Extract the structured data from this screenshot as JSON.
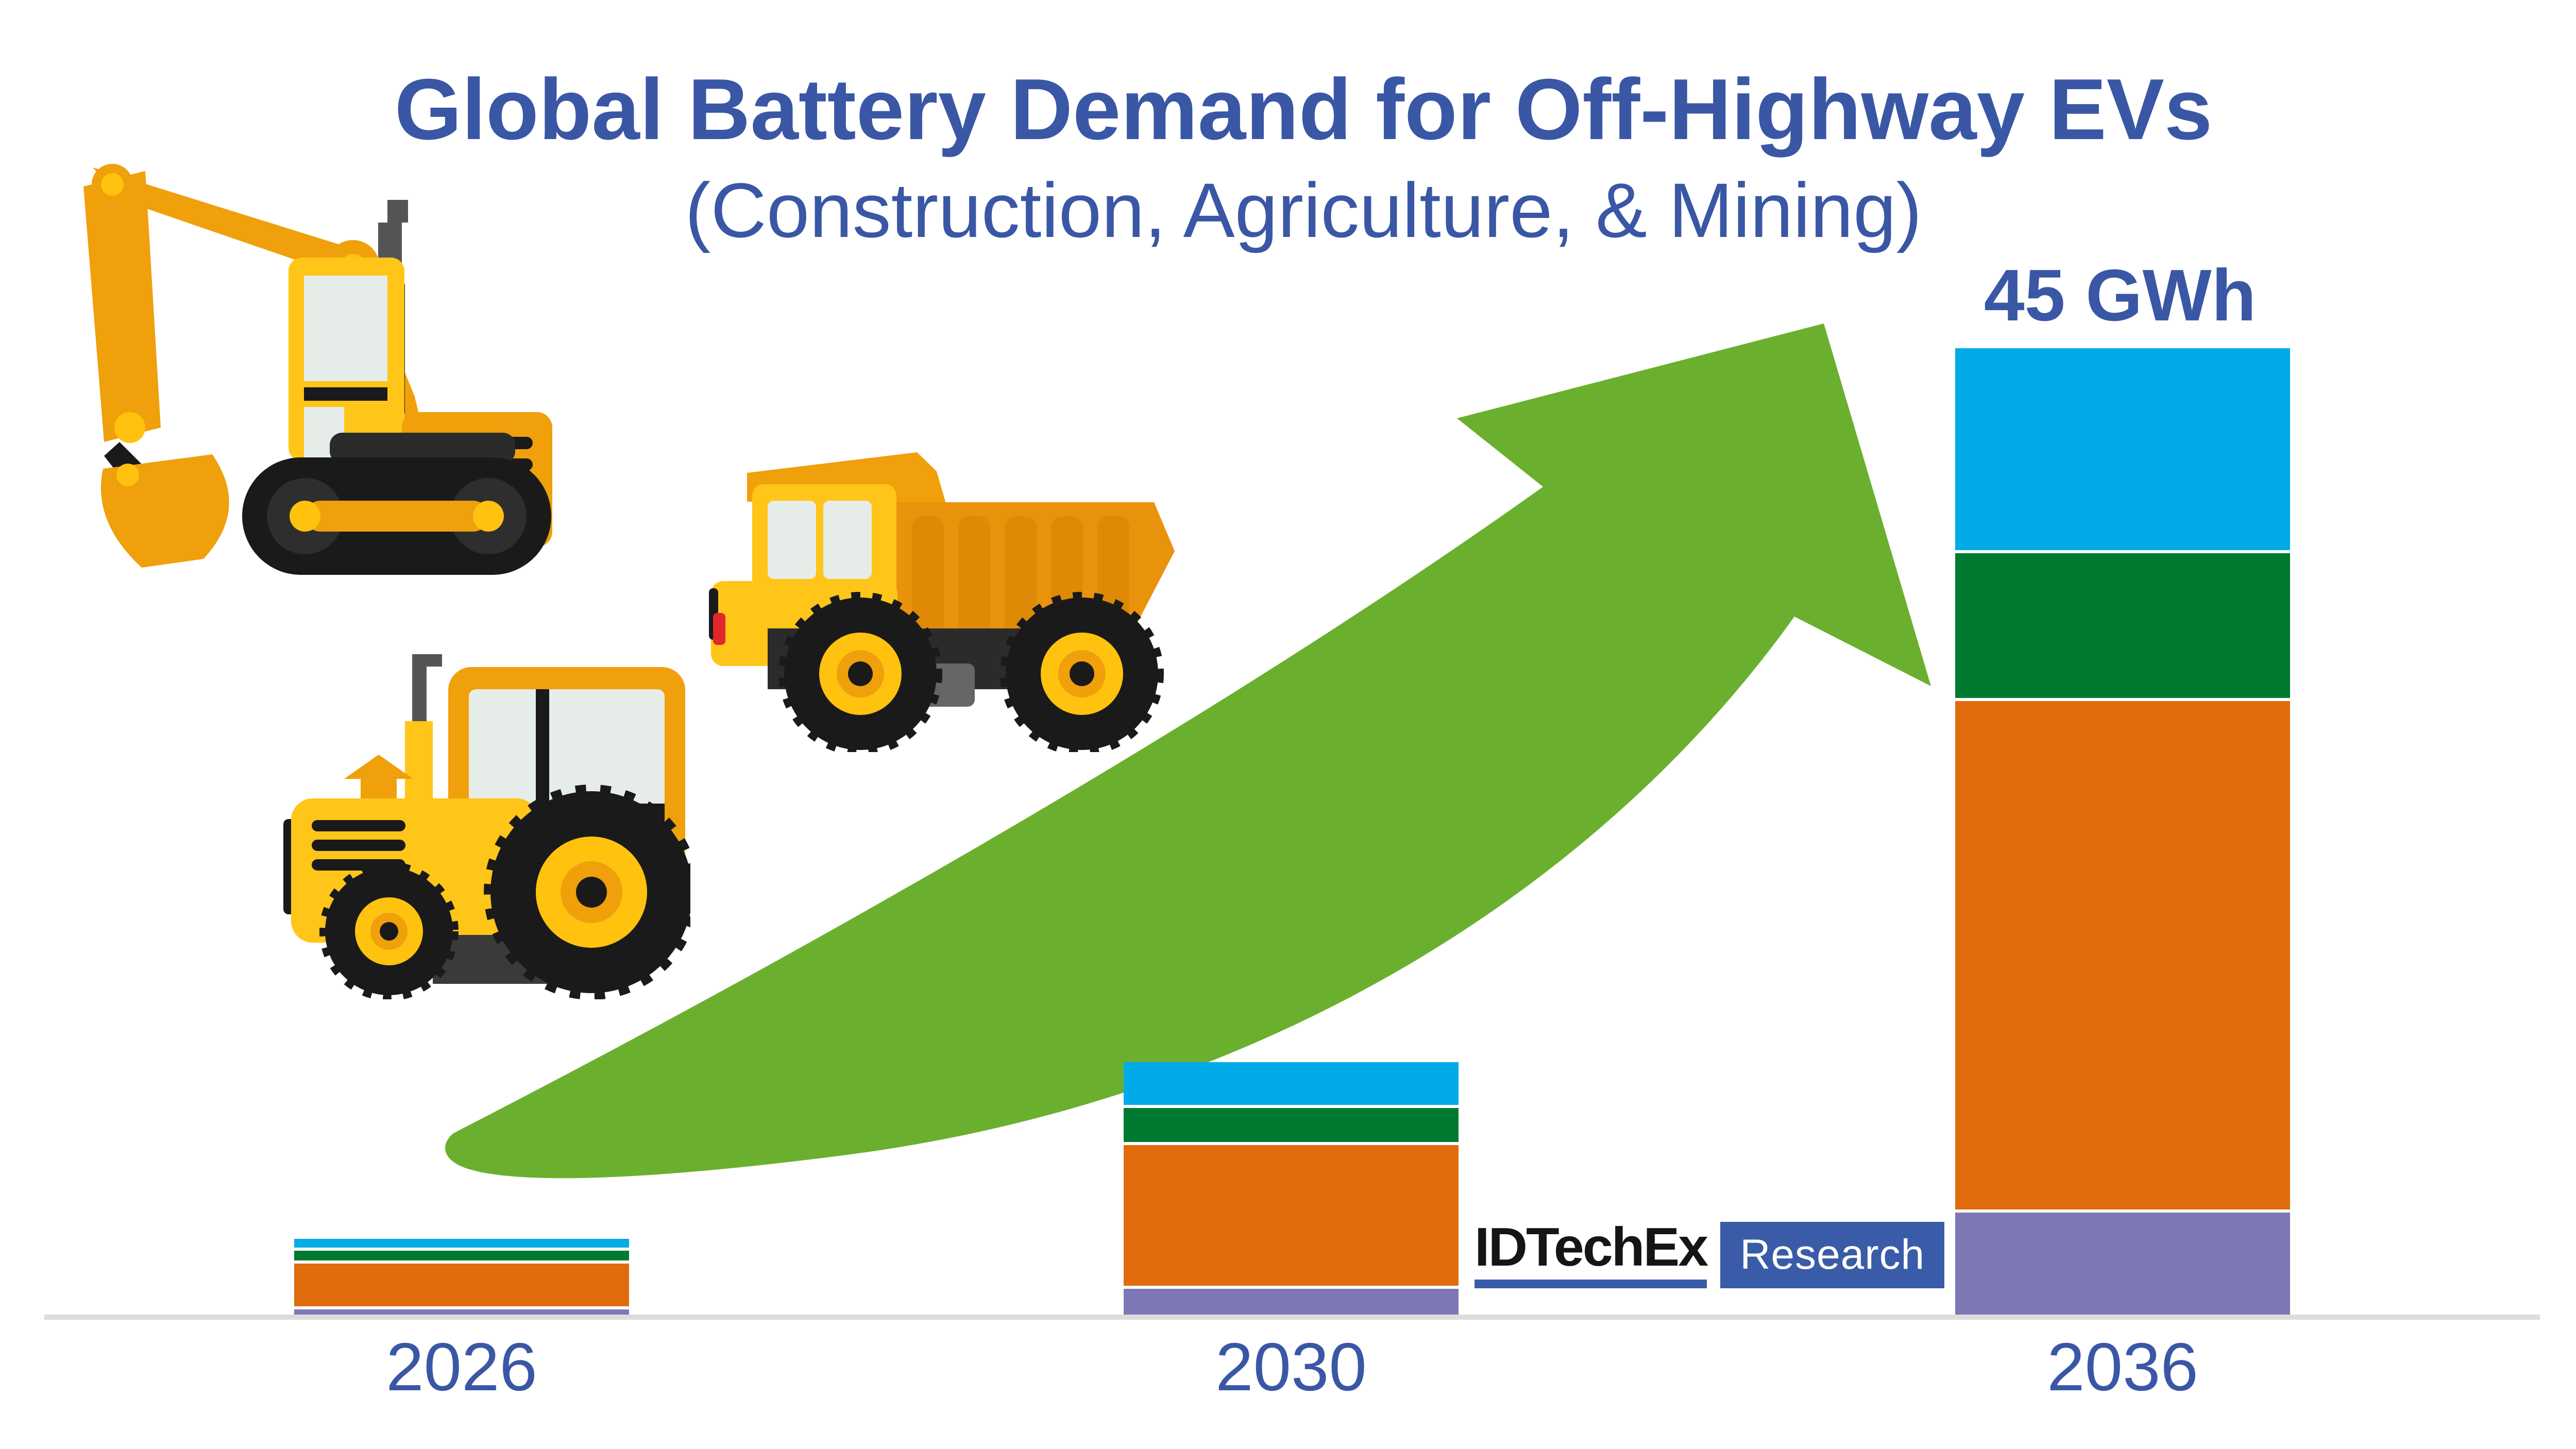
{
  "title": {
    "line1": "Global Battery Demand for Off-Highway EVs",
    "line2": "(Construction, Agriculture, & Mining)"
  },
  "annotation": {
    "total_2036": "45 GWh"
  },
  "logo": {
    "brand": "IDTechEx",
    "badge": "Research"
  },
  "colors": {
    "heading_blue": "#3A57A5",
    "logo_blue": "#3A5CA8",
    "baseline_gray": "#DCDCDC",
    "arrow_green": "#6AB02E"
  },
  "chart_data": {
    "type": "bar",
    "stacked": true,
    "unit": "GWh",
    "title": "Global Battery Demand for Off-Highway EVs (Construction, Agriculture, & Mining)",
    "categories": [
      "2026",
      "2030",
      "2036"
    ],
    "series": [
      {
        "name": "blue-segment",
        "color": "#00ABE8",
        "values": [
          0.4,
          2.0,
          9.5
        ]
      },
      {
        "name": "green-segment",
        "color": "#007A30",
        "values": [
          0.45,
          1.6,
          6.8
        ]
      },
      {
        "name": "orange-segment",
        "color": "#E06C0D",
        "values": [
          2.0,
          6.6,
          23.9
        ]
      },
      {
        "name": "purple-segment",
        "color": "#7E77B5",
        "values": [
          0.25,
          1.2,
          4.8
        ]
      }
    ],
    "stack_order": "top-to-bottom as listed",
    "totals_gwh": [
      3.1,
      11.4,
      45
    ],
    "data_labels": [
      {
        "category": "2036",
        "text": "45 GWh"
      }
    ],
    "legend": "none",
    "gridlines": false,
    "y_axis": "hidden",
    "baseline_color": "#DCDCDC"
  },
  "decorations": {
    "arrow": {
      "icon": "growth-arrow-icon",
      "color": "#6AB02E"
    },
    "vehicles": [
      {
        "icon": "excavator-icon"
      },
      {
        "icon": "tractor-icon"
      },
      {
        "icon": "dump-truck-icon"
      }
    ]
  }
}
